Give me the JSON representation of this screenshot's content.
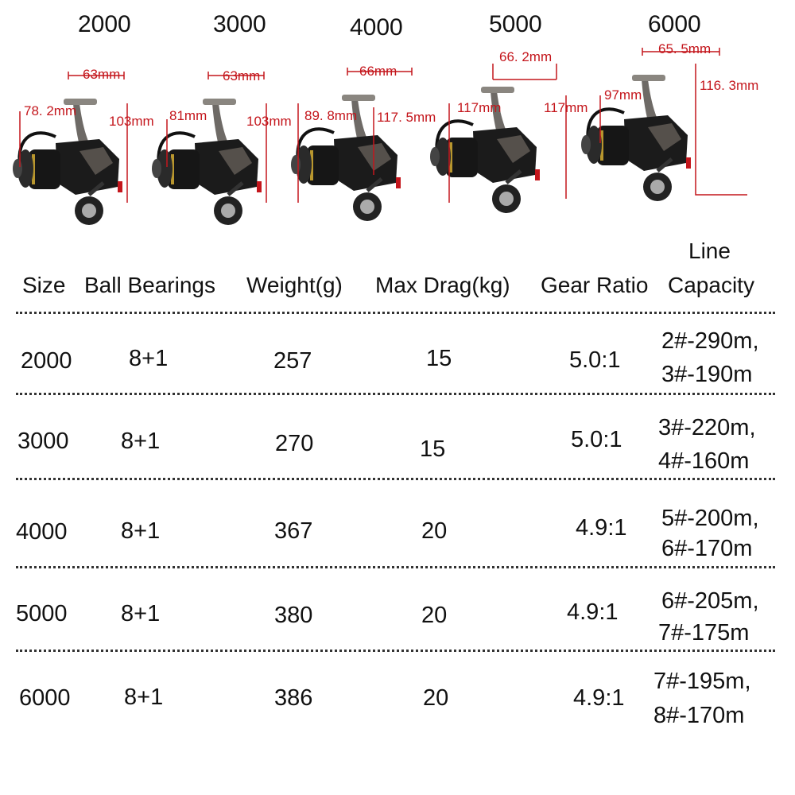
{
  "reels": [
    {
      "size": "2000",
      "spool": "63mm",
      "height": "103mm",
      "body": "78. 2mm"
    },
    {
      "size": "3000",
      "spool": "63mm",
      "height": "103mm",
      "body": "81mm"
    },
    {
      "size": "4000",
      "spool": "66mm",
      "height": "117. 5mm",
      "body": "89. 8mm"
    },
    {
      "size": "5000",
      "spool": "66. 2mm",
      "height": "117mm",
      "body": "117mm"
    },
    {
      "size": "6000",
      "spool": "65. 5mm",
      "height": "116. 3mm",
      "body": "97mm"
    }
  ],
  "table": {
    "headers": {
      "size": "Size",
      "ball_bearings": "Ball Bearings",
      "weight": "Weight(g)",
      "max_drag": "Max Drag(kg)",
      "gear_ratio": "Gear Ratio",
      "line_1": "Line",
      "line_2": "Capacity"
    },
    "rows": [
      {
        "size": "2000",
        "bearings": "8+1",
        "weight": "257",
        "drag": "15",
        "ratio": "5.0:1",
        "line1": "2#-290m,",
        "line2": "3#-190m"
      },
      {
        "size": "3000",
        "bearings": "8+1",
        "weight": "270",
        "drag": "15",
        "ratio": "5.0:1",
        "line1": "3#-220m,",
        "line2": "4#-160m"
      },
      {
        "size": "4000",
        "bearings": "8+1",
        "weight": "367",
        "drag": "20",
        "ratio": "4.9:1",
        "line1": "5#-200m,",
        "line2": "6#-170m"
      },
      {
        "size": "5000",
        "bearings": "8+1",
        "weight": "380",
        "drag": "20",
        "ratio": "4.9:1",
        "line1": "6#-205m,",
        "line2": "7#-175m"
      },
      {
        "size": "6000",
        "bearings": "8+1",
        "weight": "386",
        "drag": "20",
        "ratio": "4.9:1",
        "line1": "7#-195m,",
        "line2": "8#-170m"
      }
    ]
  },
  "colors": {
    "dimension": "#c4161c",
    "reel_body": "#1b1b1b",
    "reel_metal": "#6e6a66",
    "accent": "#b8962e"
  }
}
